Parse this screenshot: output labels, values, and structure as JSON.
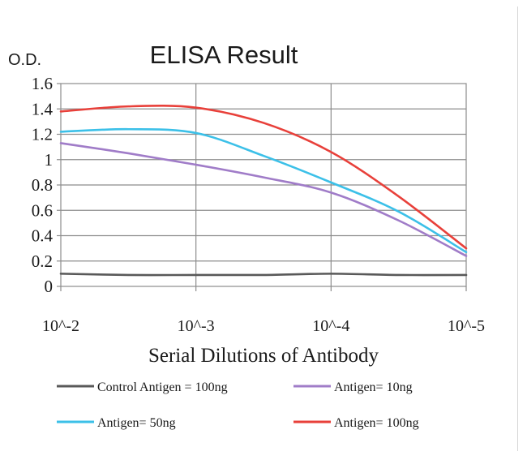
{
  "chart_data": {
    "type": "line",
    "title": "ELISA Result",
    "ylabel": "O.D.",
    "xlabel": "Serial Dilutions of Antibody",
    "x_ticks": [
      "10^-2",
      "10^-3",
      "10^-4",
      "10^-5"
    ],
    "y_ticks": [
      "0",
      "0.2",
      "0.4",
      "0.6",
      "0.8",
      "1",
      "1.2",
      "1.4",
      "1.6"
    ],
    "ylim": [
      0,
      1.6
    ],
    "x_log_dilution": [
      -2,
      -3,
      -4,
      -5
    ],
    "grid": true,
    "legend_position": "bottom",
    "series": [
      {
        "name": "Control Antigen = 100ng",
        "color": "#595959",
        "points": [
          [
            -2,
            0.1
          ],
          [
            -2.5,
            0.09
          ],
          [
            -3,
            0.09
          ],
          [
            -3.5,
            0.09
          ],
          [
            -4,
            0.1
          ],
          [
            -4.5,
            0.09
          ],
          [
            -5,
            0.09
          ]
        ]
      },
      {
        "name": "Antigen= 10ng",
        "color": "#a07cc8",
        "points": [
          [
            -2,
            1.13
          ],
          [
            -2.5,
            1.05
          ],
          [
            -3,
            0.96
          ],
          [
            -3.5,
            0.86
          ],
          [
            -4,
            0.74
          ],
          [
            -4.5,
            0.52
          ],
          [
            -5,
            0.24
          ]
        ]
      },
      {
        "name": "Antigen= 50ng",
        "color": "#3cc0e8",
        "points": [
          [
            -2,
            1.22
          ],
          [
            -2.5,
            1.24
          ],
          [
            -3,
            1.21
          ],
          [
            -3.5,
            1.03
          ],
          [
            -4,
            0.82
          ],
          [
            -4.5,
            0.59
          ],
          [
            -5,
            0.27
          ]
        ]
      },
      {
        "name": "Antigen= 100ng",
        "color": "#e8403a",
        "points": [
          [
            -2,
            1.38
          ],
          [
            -2.5,
            1.42
          ],
          [
            -3,
            1.41
          ],
          [
            -3.5,
            1.29
          ],
          [
            -4,
            1.06
          ],
          [
            -4.5,
            0.71
          ],
          [
            -5,
            0.3
          ]
        ]
      }
    ]
  }
}
